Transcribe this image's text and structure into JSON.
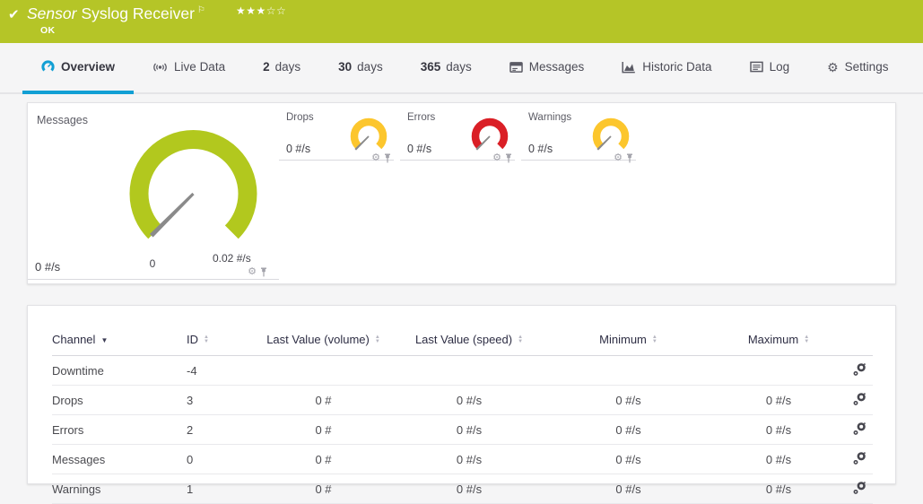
{
  "header": {
    "type_label": "Sensor",
    "name": "Syslog Receiver",
    "status": "OK",
    "rating_filled": "★★★",
    "rating_empty": "☆☆",
    "bg_color": "#b5c527"
  },
  "icons": {
    "check": "✔",
    "flag": "⚐",
    "gear": "⚙",
    "sort_asc": "▲",
    "sort_desc": "▼"
  },
  "accent_colors": {
    "active_tab": "#119fd4",
    "ok_green": "#b5c527",
    "warning_yellow": "#fcc62d",
    "error_red": "#da1f26"
  },
  "tabs": [
    {
      "id": "overview",
      "icon": "gauge-icon",
      "label": "Overview",
      "active": true
    },
    {
      "id": "live-data",
      "icon": "broadcast-icon",
      "label": "Live Data"
    },
    {
      "id": "2-days",
      "num": "2",
      "label": "days"
    },
    {
      "id": "30-days",
      "num": "30",
      "label": "days"
    },
    {
      "id": "365-days",
      "num": "365",
      "label": "days"
    },
    {
      "id": "messages",
      "icon": "messages-icon",
      "label": "Messages"
    },
    {
      "id": "historic-data",
      "icon": "area-chart-icon",
      "label": "Historic Data"
    },
    {
      "id": "log",
      "icon": "log-icon",
      "label": "Log"
    },
    {
      "id": "settings",
      "icon": "gear-icon",
      "label": "Settings"
    }
  ],
  "overview": {
    "main_gauge": {
      "title": "Messages",
      "current": "0 #/s",
      "scale_min": "0",
      "scale_max": "0.02 #/s",
      "color": "#b2c81e",
      "needle_color": "#8a8a8a"
    },
    "mini_gauges": [
      {
        "title": "Drops",
        "current": "0 #/s",
        "color": "#fcc62d"
      },
      {
        "title": "Errors",
        "current": "0 #/s",
        "color": "#da1f26"
      },
      {
        "title": "Warnings",
        "current": "0 #/s",
        "color": "#fcc62d"
      }
    ]
  },
  "channel_table": {
    "headers": [
      {
        "label": "Channel",
        "sort": "desc"
      },
      {
        "label": "ID",
        "sort": "both"
      },
      {
        "label": "Last Value (volume)",
        "sort": "both"
      },
      {
        "label": "Last Value (speed)",
        "sort": "both"
      },
      {
        "label": "Minimum",
        "sort": "both"
      },
      {
        "label": "Maximum",
        "sort": "both"
      }
    ],
    "rows": [
      {
        "channel": "Downtime",
        "id": "-4",
        "volume": "",
        "speed": "",
        "min": "",
        "max": ""
      },
      {
        "channel": "Drops",
        "id": "3",
        "volume": "0 #",
        "speed": "0 #/s",
        "min": "0 #/s",
        "max": "0 #/s"
      },
      {
        "channel": "Errors",
        "id": "2",
        "volume": "0 #",
        "speed": "0 #/s",
        "min": "0 #/s",
        "max": "0 #/s"
      },
      {
        "channel": "Messages",
        "id": "0",
        "volume": "0 #",
        "speed": "0 #/s",
        "min": "0 #/s",
        "max": "0 #/s"
      },
      {
        "channel": "Warnings",
        "id": "1",
        "volume": "0 #",
        "speed": "0 #/s",
        "min": "0 #/s",
        "max": "0 #/s"
      }
    ]
  }
}
